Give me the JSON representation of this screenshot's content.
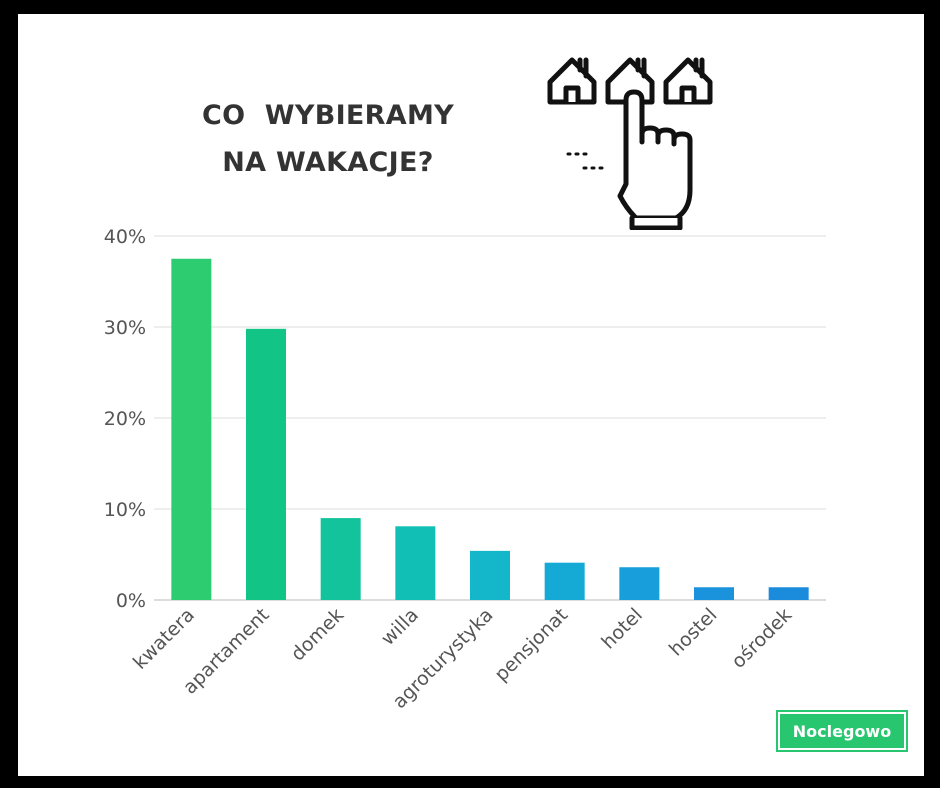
{
  "title_lines": [
    "CO  WYBIERAMY",
    "NA WAKACJE?"
  ],
  "brand_label": "Noclegowo",
  "illustration_icons": [
    "house-icon",
    "house-icon",
    "house-icon",
    "pointing-hand-icon"
  ],
  "chart_data": {
    "type": "bar",
    "title": "CO  WYBIERAMY NA WAKACJE?",
    "xlabel": "",
    "ylabel": "",
    "categories": [
      "kwatera",
      "apartament",
      "domek",
      "willa",
      "agroturystyka",
      "pensjonat",
      "hotel",
      "hostel",
      "ośrodek"
    ],
    "values": [
      37.5,
      29.8,
      9.0,
      8.1,
      5.4,
      4.1,
      3.6,
      1.4,
      1.4
    ],
    "ylim": [
      0,
      40
    ],
    "yticks": [
      0,
      10,
      20,
      30,
      40
    ],
    "ytick_labels": [
      "0%",
      "10%",
      "20%",
      "30%",
      "40%"
    ],
    "colors": [
      "#2ecc71",
      "#13c487",
      "#12c39b",
      "#12bfb5",
      "#13b7c9",
      "#15aad5",
      "#179edb",
      "#1a93dc",
      "#1b8bdc"
    ],
    "grid": true,
    "legend": "none"
  }
}
